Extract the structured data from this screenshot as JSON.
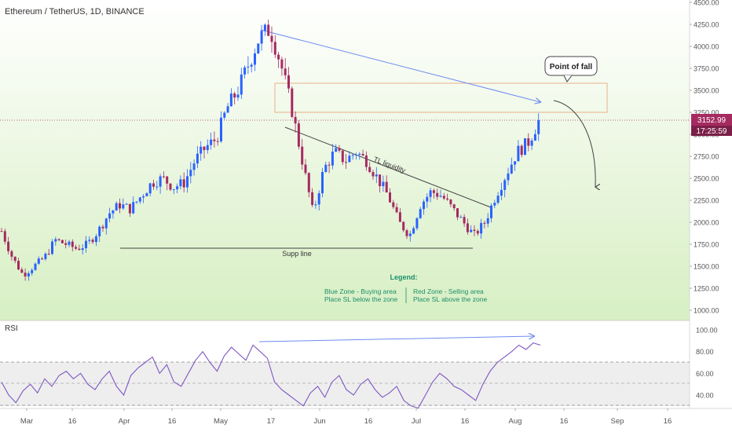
{
  "colors": {
    "up": "#2962FF",
    "down": "#A52A60",
    "price_badge": "#A52A60",
    "rsi_line": "#7E57C2",
    "trend_arrow": "#6E8CF0",
    "sell_zone": "#E8B08A",
    "legend_text": "#1B8F6A",
    "bg_top": "#FFFFFF",
    "bg_bottom": "#D7EFC3"
  },
  "header": {
    "title": "Ethereum / TetherUS, 1D, BINANCE"
  },
  "price_badge": {
    "price": "3152.99",
    "countdown": "17:25:59"
  },
  "annotations": {
    "point_of_fall": "Point of fall",
    "tl_liquidity": "TL liquidity",
    "supp_line": "Supp line"
  },
  "legend": {
    "title": "Legend:",
    "left_line1": "Blue Zone - Buying area",
    "left_line2": "Place SL below the zone",
    "right_line1": "Red Zone - Selling area",
    "right_line2": "Place SL above the zone"
  },
  "rsi": {
    "label": "RSI"
  },
  "chart_data": {
    "type": "candlestick",
    "title": "Ethereum / TetherUS, 1D, BINANCE",
    "x_ticks": [
      "Mar",
      "16",
      "Apr",
      "16",
      "May",
      "17",
      "Jun",
      "16",
      "Jul",
      "16",
      "Aug",
      "16",
      "Sep",
      "16"
    ],
    "y_ticks": [
      "4500.00",
      "4250.00",
      "4000.00",
      "3750.00",
      "3500.00",
      "3250.00",
      "3000.00",
      "2750.00",
      "2500.00",
      "2250.00",
      "2000.00",
      "1750.00",
      "1500.00",
      "1250.00",
      "1000.00"
    ],
    "ylim": [
      900,
      4500
    ],
    "last_price": 3152.99,
    "series_path": [
      1900,
      1600,
      1400,
      1500,
      1600,
      1800,
      1750,
      1700,
      1750,
      1900,
      2100,
      2200,
      2150,
      2300,
      2450,
      2500,
      2400,
      2450,
      2700,
      2850,
      2950,
      3300,
      3500,
      3800,
      4100,
      4200,
      3800,
      3300,
      2700,
      2100,
      2600,
      2800,
      2700,
      2800,
      2700,
      2500,
      2300,
      2000,
      1850,
      2200,
      2350,
      2300,
      2150,
      2000,
      1850,
      2000,
      2300,
      2550,
      2800,
      2900,
      3150
    ],
    "resistance_zone": [
      3250,
      3560
    ],
    "support_line": 1720,
    "rsi": {
      "y_ticks": [
        "100.00",
        "80.00",
        "60.00",
        "40.00"
      ],
      "ylim": [
        25,
        105
      ],
      "bands": [
        70,
        50,
        30
      ],
      "values": [
        52,
        40,
        33,
        44,
        50,
        42,
        55,
        48,
        58,
        62,
        55,
        60,
        50,
        45,
        55,
        62,
        48,
        40,
        58,
        65,
        70,
        75,
        60,
        68,
        52,
        48,
        60,
        72,
        80,
        70,
        62,
        76,
        84,
        78,
        72,
        86,
        80,
        74,
        52,
        45,
        40,
        35,
        30,
        42,
        48,
        38,
        52,
        58,
        45,
        40,
        50,
        55,
        45,
        38,
        42,
        48,
        35,
        30,
        28,
        40,
        52,
        60,
        55,
        48,
        45,
        40,
        35,
        50,
        62,
        70,
        75,
        80,
        86,
        82,
        88,
        86
      ]
    }
  }
}
